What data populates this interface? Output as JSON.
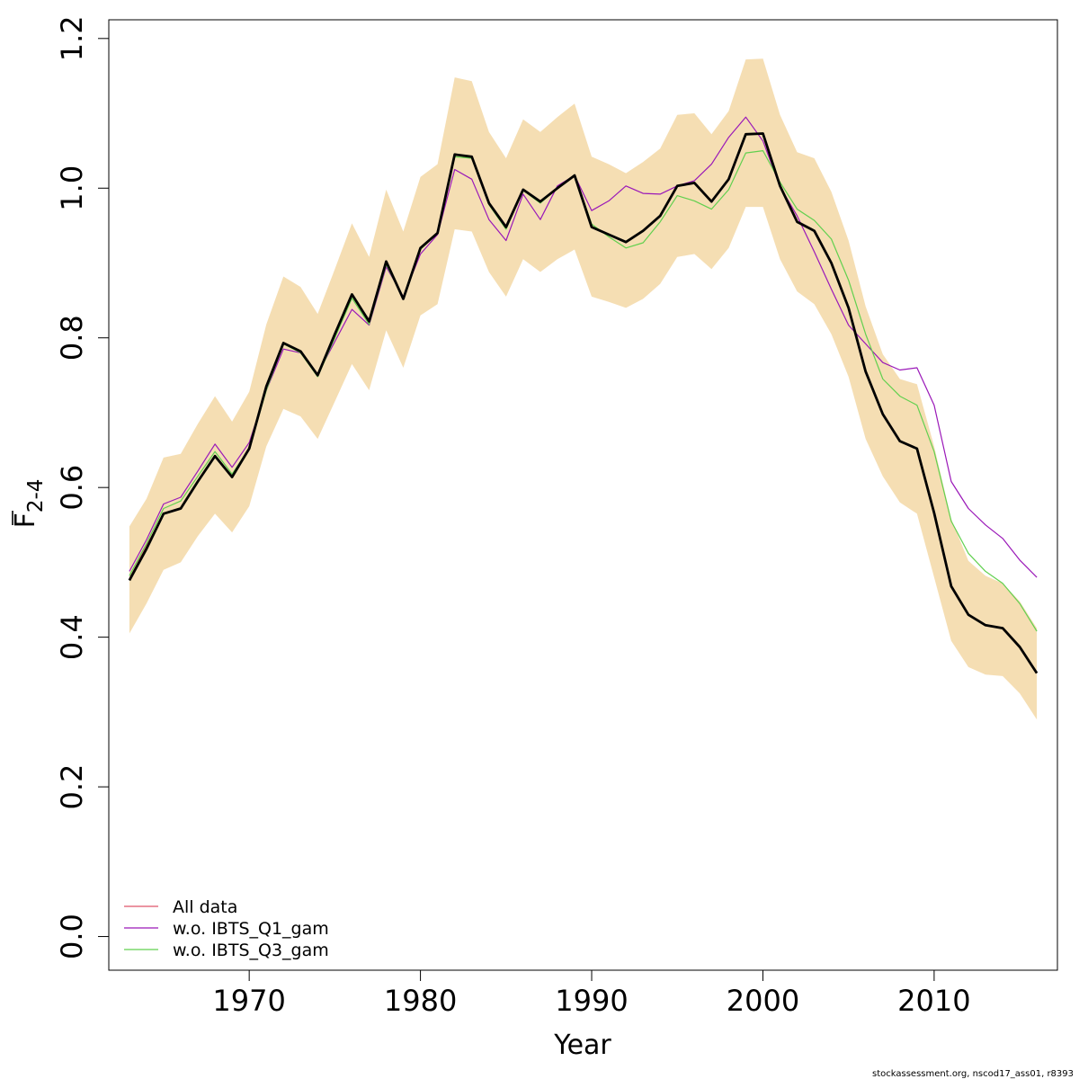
{
  "chart_data": {
    "type": "line",
    "xlabel": "Year",
    "ylabel_main": "F",
    "ylabel_sub": "2-4",
    "xlim": [
      1961.8,
      2017.2
    ],
    "ylim": [
      -0.045,
      1.225
    ],
    "x_ticks": [
      1970,
      1980,
      1990,
      2000,
      2010
    ],
    "x_tick_labels": [
      "1970",
      "1980",
      "1990",
      "2000",
      "2010"
    ],
    "y_ticks": [
      0.0,
      0.2,
      0.4,
      0.6,
      0.8,
      1.0,
      1.2
    ],
    "y_tick_labels": [
      "0.0",
      "0.2",
      "0.4",
      "0.6",
      "0.8",
      "1.0",
      "1.2"
    ],
    "grid": false,
    "years": [
      1963,
      1964,
      1965,
      1966,
      1967,
      1968,
      1969,
      1970,
      1971,
      1972,
      1973,
      1974,
      1975,
      1976,
      1977,
      1978,
      1979,
      1980,
      1981,
      1982,
      1983,
      1984,
      1985,
      1986,
      1987,
      1988,
      1989,
      1990,
      1991,
      1992,
      1993,
      1994,
      1995,
      1996,
      1997,
      1998,
      1999,
      2000,
      2001,
      2002,
      2003,
      2004,
      2005,
      2006,
      2007,
      2008,
      2009,
      2010,
      2011,
      2012,
      2013,
      2014,
      2015,
      2016
    ],
    "band": {
      "color": "#F5DEB3",
      "lower": [
        0.405,
        0.445,
        0.49,
        0.5,
        0.535,
        0.565,
        0.54,
        0.575,
        0.655,
        0.705,
        0.695,
        0.665,
        0.715,
        0.765,
        0.73,
        0.81,
        0.76,
        0.83,
        0.845,
        0.945,
        0.942,
        0.888,
        0.855,
        0.905,
        0.888,
        0.905,
        0.918,
        0.855,
        0.848,
        0.84,
        0.852,
        0.872,
        0.908,
        0.912,
        0.892,
        0.92,
        0.975,
        0.975,
        0.905,
        0.862,
        0.845,
        0.805,
        0.748,
        0.665,
        0.615,
        0.58,
        0.565,
        0.48,
        0.395,
        0.36,
        0.35,
        0.348,
        0.325,
        0.29
      ],
      "upper": [
        0.548,
        0.585,
        0.64,
        0.645,
        0.685,
        0.722,
        0.688,
        0.728,
        0.818,
        0.882,
        0.868,
        0.832,
        0.892,
        0.953,
        0.908,
        0.998,
        0.942,
        1.015,
        1.032,
        1.148,
        1.143,
        1.075,
        1.04,
        1.092,
        1.075,
        1.095,
        1.113,
        1.042,
        1.032,
        1.02,
        1.035,
        1.053,
        1.098,
        1.1,
        1.072,
        1.103,
        1.172,
        1.173,
        1.098,
        1.048,
        1.04,
        0.995,
        0.93,
        0.842,
        0.778,
        0.745,
        0.738,
        0.655,
        0.558,
        0.502,
        0.482,
        0.472,
        0.448,
        0.412
      ]
    },
    "series": [
      {
        "name": "All data",
        "color": "#DF536B",
        "width": 1.2,
        "values": [
          0.478,
          0.522,
          0.565,
          0.572,
          0.608,
          0.642,
          0.614,
          0.652,
          0.735,
          0.793,
          0.782,
          0.75,
          0.805,
          0.858,
          0.822,
          0.902,
          0.852,
          0.92,
          0.94,
          1.045,
          1.042,
          0.98,
          0.948,
          0.998,
          0.982,
          1.0,
          1.017,
          0.948,
          0.938,
          0.928,
          0.943,
          0.963,
          1.003,
          1.007,
          0.982,
          1.012,
          1.072,
          1.073,
          1.003,
          0.955,
          0.943,
          0.9,
          0.84,
          0.755,
          0.698,
          0.662,
          0.652,
          0.566,
          0.468,
          0.43,
          0.416,
          0.412,
          0.387,
          0.352
        ]
      },
      {
        "name": "w.o. IBTS_Q1_gam",
        "color": "#9A18B8",
        "width": 1.2,
        "values": [
          0.488,
          0.53,
          0.578,
          0.587,
          0.622,
          0.658,
          0.627,
          0.66,
          0.73,
          0.785,
          0.78,
          0.752,
          0.795,
          0.838,
          0.817,
          0.895,
          0.855,
          0.912,
          0.938,
          1.025,
          1.012,
          0.958,
          0.93,
          0.992,
          0.958,
          1.003,
          1.017,
          0.97,
          0.983,
          1.003,
          0.993,
          0.992,
          1.003,
          1.01,
          1.032,
          1.068,
          1.095,
          1.063,
          1.002,
          0.963,
          0.915,
          0.865,
          0.817,
          0.792,
          0.767,
          0.757,
          0.76,
          0.71,
          0.608,
          0.572,
          0.55,
          0.532,
          0.503,
          0.48
        ]
      },
      {
        "name": "w.o. IBTS_Q3_gam",
        "color": "#61D04F",
        "width": 1.2,
        "values": [
          0.482,
          0.525,
          0.572,
          0.582,
          0.615,
          0.648,
          0.618,
          0.652,
          0.73,
          0.792,
          0.78,
          0.748,
          0.8,
          0.853,
          0.818,
          0.898,
          0.852,
          0.918,
          0.94,
          1.042,
          1.04,
          0.978,
          0.945,
          0.997,
          0.98,
          1.0,
          1.018,
          0.952,
          0.935,
          0.92,
          0.927,
          0.955,
          0.99,
          0.983,
          0.972,
          0.998,
          1.047,
          1.05,
          1.008,
          0.972,
          0.957,
          0.932,
          0.877,
          0.805,
          0.745,
          0.722,
          0.71,
          0.648,
          0.555,
          0.512,
          0.488,
          0.472,
          0.445,
          0.408
        ]
      },
      {
        "name": "",
        "color": "#000000",
        "width": 2.8,
        "values": [
          0.476,
          0.518,
          0.565,
          0.572,
          0.608,
          0.642,
          0.614,
          0.652,
          0.735,
          0.793,
          0.782,
          0.75,
          0.805,
          0.858,
          0.822,
          0.902,
          0.852,
          0.92,
          0.94,
          1.045,
          1.042,
          0.98,
          0.948,
          0.998,
          0.982,
          1.0,
          1.017,
          0.948,
          0.938,
          0.928,
          0.943,
          0.963,
          1.003,
          1.007,
          0.982,
          1.012,
          1.072,
          1.073,
          1.003,
          0.955,
          0.943,
          0.9,
          0.84,
          0.755,
          0.698,
          0.662,
          0.652,
          0.566,
          0.468,
          0.43,
          0.416,
          0.412,
          0.387,
          0.352
        ]
      }
    ],
    "legend": {
      "placement": "bottom-left",
      "entries": [
        {
          "label": "All data",
          "color": "#DF536B"
        },
        {
          "label": "w.o. IBTS_Q1_gam",
          "color": "#9A18B8"
        },
        {
          "label": "w.o. IBTS_Q3_gam",
          "color": "#61D04F"
        }
      ]
    }
  },
  "footer": {
    "credit": "stockassessment.org, nscod17_ass01, r8393"
  }
}
